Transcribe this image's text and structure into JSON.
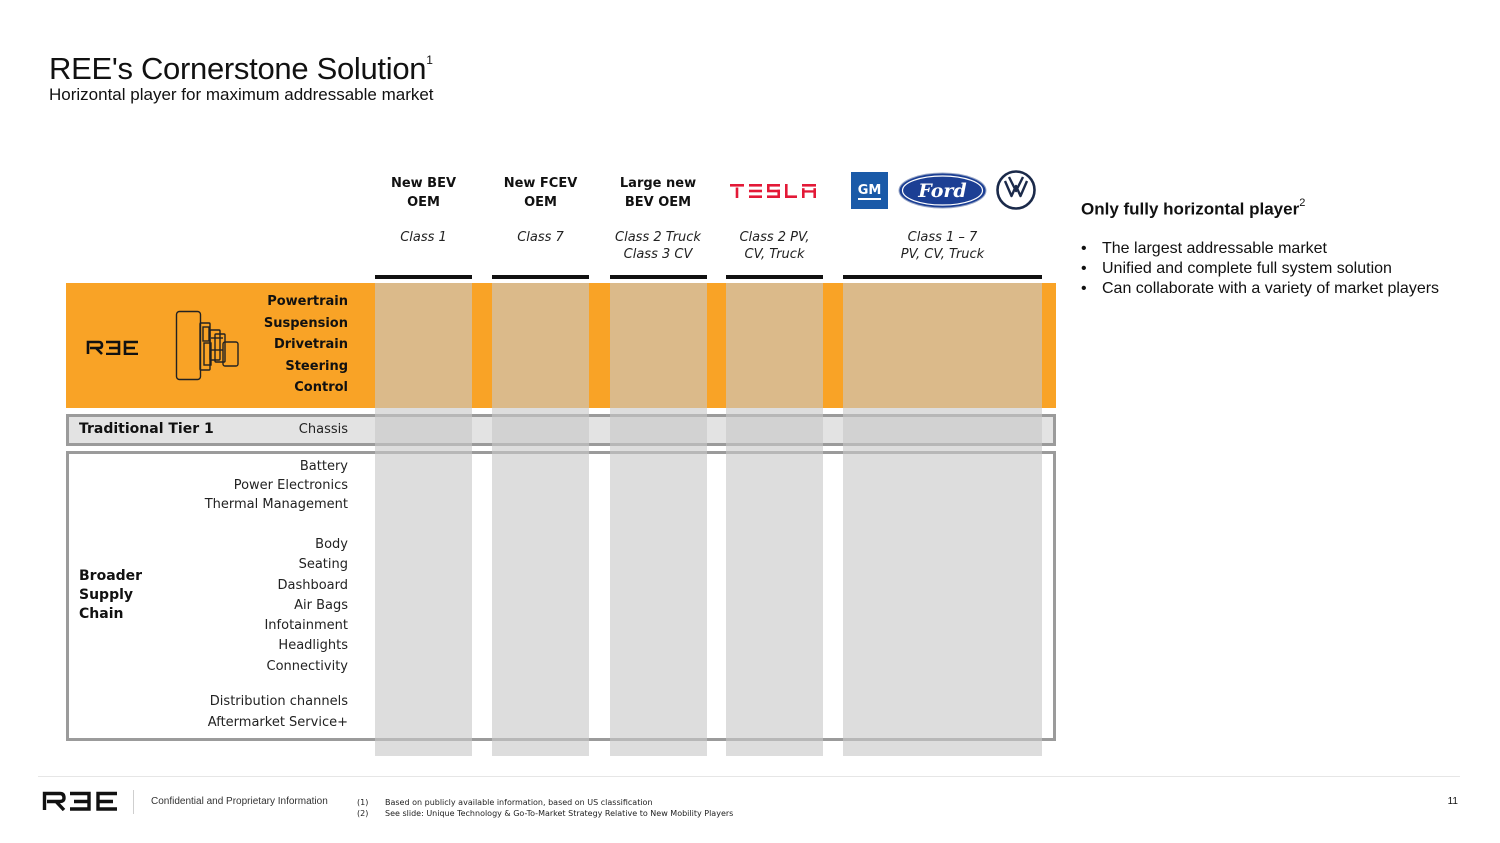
{
  "header": {
    "title": "REE's Cornerstone Solution",
    "title_sup": "1",
    "subtitle": "Horizontal player for maximum addressable market"
  },
  "columns": [
    {
      "name": "New BEV\nOEM",
      "class": "Class 1"
    },
    {
      "name": "New FCEV\nOEM",
      "class": "Class 7"
    },
    {
      "name": "Large new\nBEV OEM",
      "class": "Class 2 Truck\nClass 3 CV"
    },
    {
      "logo": "TESLA",
      "class": "Class 2 PV,\nCV, Truck"
    },
    {
      "logos": [
        "GM",
        "Ford",
        "VW"
      ],
      "class": "Class 1 – 7\nPV, CV, Truck"
    }
  ],
  "ree_logo_text": "R3E",
  "ree_components": [
    "Powertrain",
    "Suspension",
    "Drivetrain",
    "Steering",
    "Control"
  ],
  "tier1": {
    "label": "Traditional Tier 1",
    "item": "Chassis"
  },
  "supply_chain": {
    "label": "Broader\nSupply\nChain",
    "group1": [
      "Battery",
      "Power Electronics",
      "Thermal Management"
    ],
    "group2": [
      "Body",
      "Seating",
      "Dashboard",
      "Air Bags",
      "Infotainment",
      "Headlights",
      "Connectivity"
    ],
    "group3": [
      "Distribution channels",
      "Aftermarket Service+"
    ]
  },
  "right_panel": {
    "title": "Only fully horizontal player",
    "title_sup": "2",
    "bullets": [
      "The largest addressable market",
      "Unified and complete full system solution",
      "Can collaborate with a variety of market players"
    ]
  },
  "footer": {
    "logo_text": "R3E",
    "confidential": "Confidential and Proprietary Information",
    "footnotes": [
      {
        "num": "(1)",
        "text": "Based on publicly available information, based on US classification"
      },
      {
        "num": "(2)",
        "text": "See slide: Unique Technology & Go-To-Market Strategy Relative to New Mobility Players"
      }
    ],
    "page_number": "11"
  },
  "colors": {
    "orange": "#f9a326",
    "shade": "#d6d6d6",
    "border_gray": "#9b9b9b",
    "ford_blue": "#1c3f94",
    "gm_blue": "#1a5aa8",
    "tesla_red": "#e31937"
  }
}
